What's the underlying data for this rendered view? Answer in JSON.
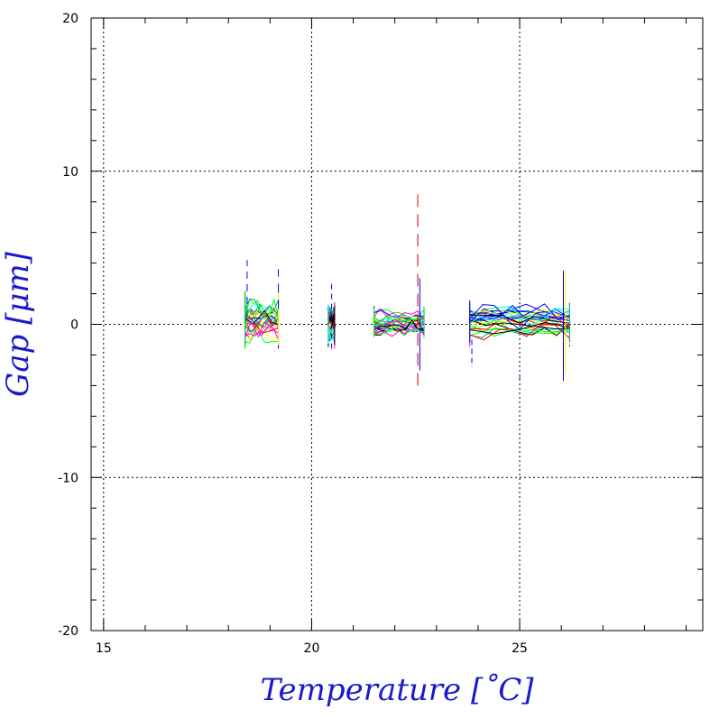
{
  "chart_data": {
    "type": "line",
    "title": "",
    "xlabel": "Temperature [˚C]",
    "ylabel": "Gap [μm]",
    "xlim": [
      14.7,
      29.4
    ],
    "ylim": [
      -20,
      20
    ],
    "x_ticks": [
      15,
      20,
      25
    ],
    "y_ticks": [
      20,
      10,
      0,
      -10,
      -20
    ],
    "x_tick_labels": [
      "15",
      "20",
      "25"
    ],
    "y_tick_labels": [
      "20",
      "10",
      "0",
      "-10",
      "-20"
    ],
    "grid": true,
    "legend": "none",
    "series_colors": [
      "#0000ff",
      "#ff0000",
      "#00ffff",
      "#ff00ff",
      "#ffff00",
      "#00ff00",
      "#000000",
      "#00aa88"
    ],
    "clusters": [
      {
        "x_range": [
          18.4,
          19.2
        ],
        "y_range": [
          -1.6,
          2.2
        ],
        "spike_max": 4.2
      },
      {
        "x_range": [
          20.4,
          20.55
        ],
        "y_range": [
          -1.6,
          1.5
        ],
        "spike_max": 2.8
      },
      {
        "x_range": [
          21.5,
          22.7
        ],
        "y_range": [
          -1.0,
          1.2
        ],
        "spike_max": 8.5,
        "spike_min": -4.0
      },
      {
        "x_range": [
          23.8,
          26.2
        ],
        "y_range": [
          -1.5,
          1.6
        ],
        "spike_max": 3.5,
        "spike_min": -3.7
      }
    ]
  }
}
